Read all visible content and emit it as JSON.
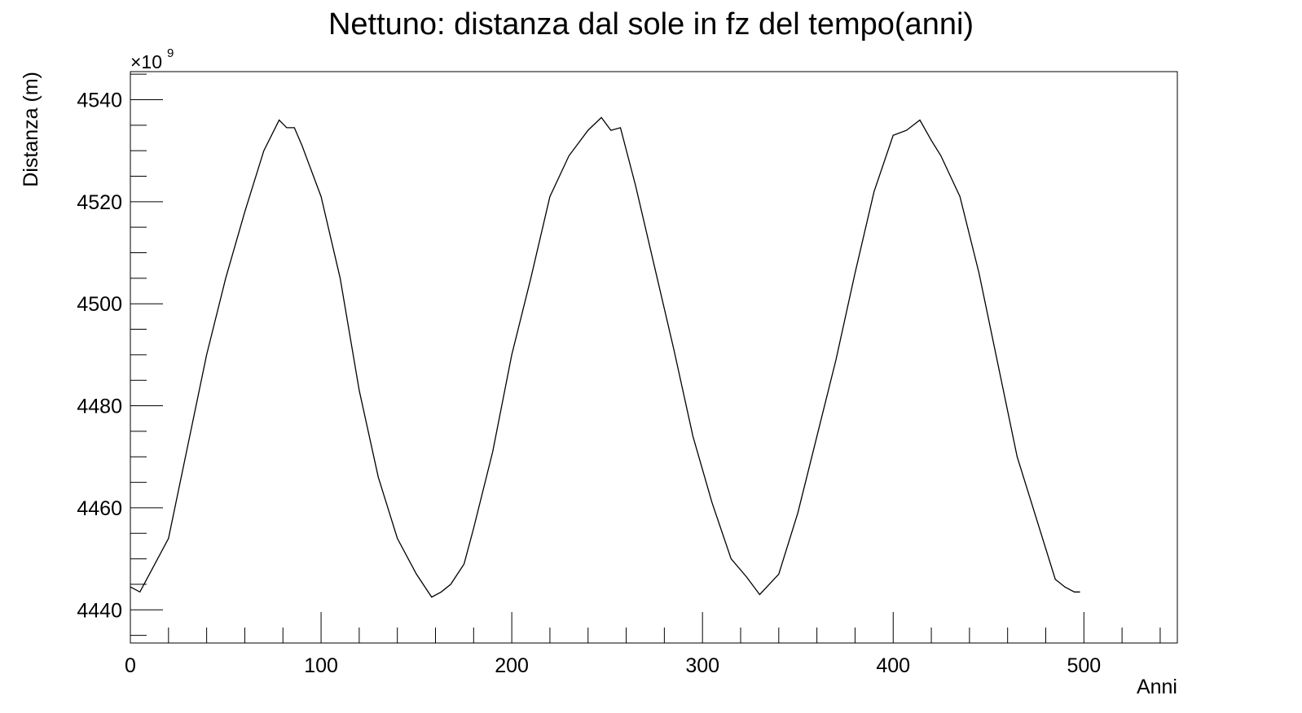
{
  "chart_data": {
    "type": "line",
    "title": "Nettuno: distanza dal sole in fz del tempo(anni)",
    "xlabel": "Anni",
    "ylabel": "Distanza (m)",
    "y_multiplier": "×10",
    "y_multiplier_exp": "9",
    "xlim": [
      0,
      549
    ],
    "ylim": [
      4433.5,
      4545.5
    ],
    "x_ticks": [
      0,
      100,
      200,
      300,
      400,
      500
    ],
    "y_ticks": [
      4440,
      4460,
      4480,
      4500,
      4520,
      4540
    ],
    "x_tick_labels": [
      "0",
      "100",
      "200",
      "300",
      "400",
      "500"
    ],
    "y_tick_labels": [
      "4440",
      "4460",
      "4480",
      "4500",
      "4520",
      "4540"
    ],
    "grid": false,
    "color": "#000000",
    "series": [
      {
        "x": [
          0,
          5,
          10,
          20,
          30,
          40,
          50,
          60,
          70,
          78,
          82,
          86,
          90,
          100,
          110,
          120,
          130,
          140,
          150,
          158,
          163,
          168,
          175,
          180,
          190,
          200,
          210,
          220,
          230,
          240,
          247,
          252,
          257,
          265,
          275,
          285,
          295,
          305,
          315,
          323,
          330,
          335,
          340,
          350,
          360,
          370,
          380,
          390,
          400,
          407,
          414,
          420,
          425,
          435,
          445,
          455,
          465,
          475,
          485,
          490,
          495,
          498
        ],
        "y": [
          4444.5,
          4443.5,
          4447,
          4454,
          4472,
          4490,
          4505,
          4518,
          4530,
          4536,
          4534.5,
          4534.5,
          4531,
          4521,
          4505,
          4483,
          4466,
          4454,
          4447,
          4442.5,
          4443.5,
          4445,
          4449,
          4456,
          4471,
          4490,
          4505,
          4521,
          4529,
          4534,
          4536.5,
          4534,
          4534.5,
          4523,
          4507,
          4491,
          4474,
          4461,
          4450,
          4446.5,
          4443,
          4445,
          4447,
          4459,
          4474,
          4489,
          4506,
          4522,
          4533,
          4534,
          4536,
          4532,
          4529,
          4521,
          4506,
          4488,
          4470,
          4458,
          4446,
          4444.5,
          4443.5,
          4443.5
        ]
      }
    ]
  }
}
